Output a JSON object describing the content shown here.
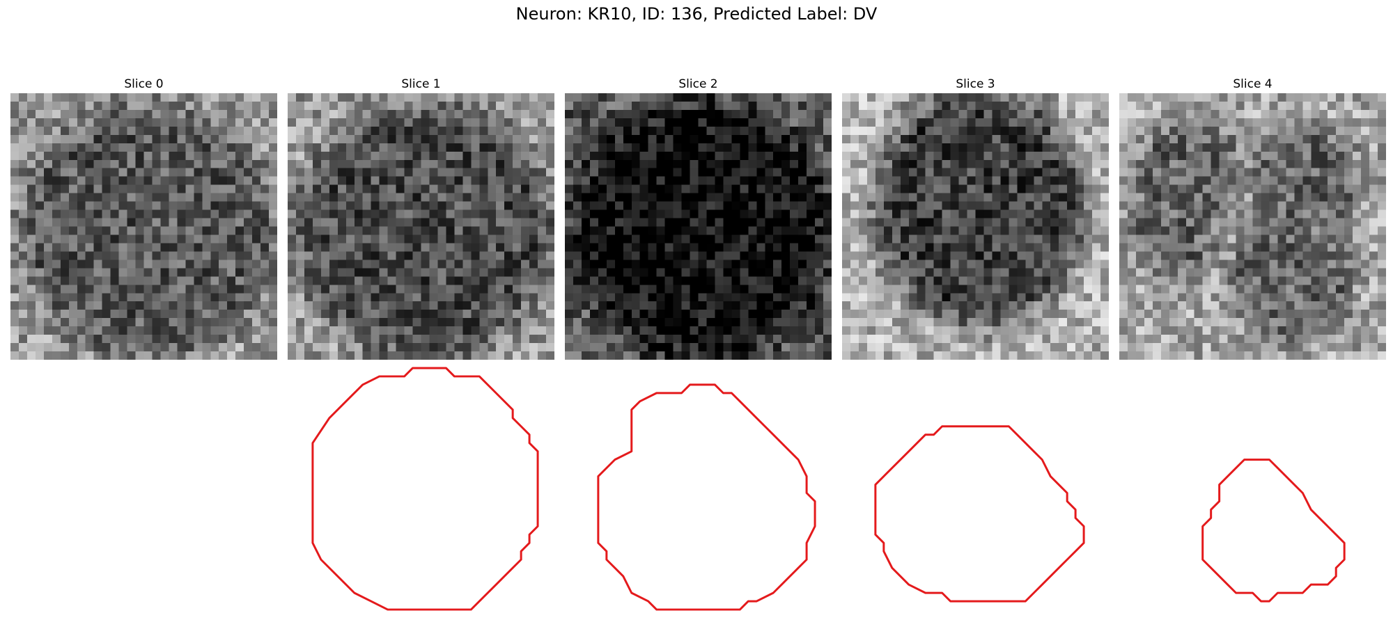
{
  "figure": {
    "title": "Neuron: KR10, ID: 136, Predicted Label: DV"
  },
  "panels": [
    {
      "title": "Slice 0",
      "has_contour": false,
      "mask": "disk",
      "mask_level": 0.35,
      "surround_level": 0.6
    },
    {
      "title": "Slice 1",
      "has_contour": true,
      "mask": "disk",
      "mask_level": 0.3,
      "surround_level": 0.6
    },
    {
      "title": "Slice 2",
      "has_contour": true,
      "mask": "disk",
      "mask_level": 0.05,
      "surround_level": 0.35
    },
    {
      "title": "Slice 3",
      "has_contour": true,
      "mask": "blob",
      "mask_level": 0.25,
      "surround_level": 0.7
    },
    {
      "title": "Slice 4",
      "has_contour": true,
      "mask": "spots",
      "mask_level": 0.4,
      "surround_level": 0.65
    }
  ],
  "colors": {
    "contour": "#e41a1c",
    "background": "#ffffff"
  }
}
